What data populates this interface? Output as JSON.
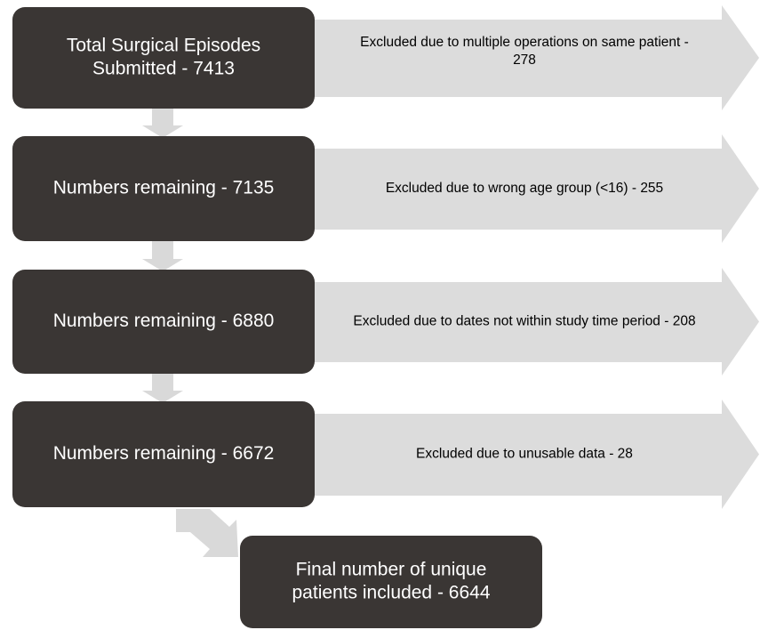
{
  "nodes": [
    {
      "lines": [
        "Total Surgical Episodes",
        "Submitted - 7413"
      ]
    },
    {
      "lines": [
        "Numbers remaining - 7135"
      ]
    },
    {
      "lines": [
        "Numbers remaining - 6880"
      ]
    },
    {
      "lines": [
        "Numbers remaining - 6672"
      ]
    }
  ],
  "exclusions": [
    {
      "lines": [
        "Excluded due to multiple operations on same patient -",
        "278"
      ]
    },
    {
      "lines": [
        "Excluded due to wrong age group (<16) - 255"
      ]
    },
    {
      "lines": [
        "Excluded due to dates not within study time period - 208"
      ]
    },
    {
      "lines": [
        "Excluded due to unusable data - 28"
      ]
    }
  ],
  "final": {
    "lines": [
      "Final number of unique",
      "patients included - 6644"
    ]
  }
}
